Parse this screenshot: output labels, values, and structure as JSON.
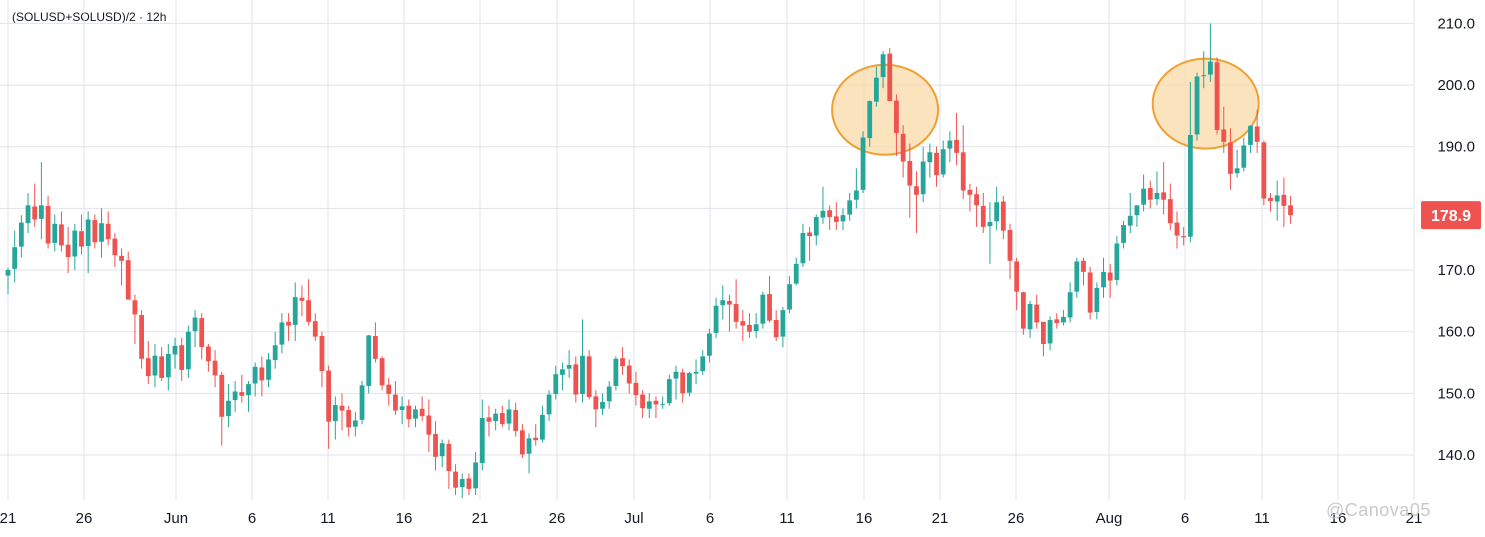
{
  "symbol": "(SOLUSD+SOLUSD)/2 · 12h",
  "watermark": "@Canova05",
  "colors": {
    "up": "#26a69a",
    "down": "#ef5350",
    "grid": "#e0e3eb",
    "highlight_fill": "#f9d9a8",
    "highlight_stroke": "#f0a030",
    "last_price_bg": "#ef5350"
  },
  "last_price_label": "178.9",
  "chart_data": {
    "type": "candlestick",
    "title": "",
    "y_ticks": [
      "140.0",
      "150.0",
      "160.0",
      "170.0",
      "180.0",
      "190.0",
      "200.0",
      "210.0"
    ],
    "ylim": [
      132.7,
      213.8
    ],
    "x_ticks": [
      "21",
      "26",
      "Jun",
      "6",
      "11",
      "16",
      "21",
      "26",
      "Jul",
      "6",
      "11",
      "16",
      "21",
      "26",
      "Aug",
      "6",
      "11",
      "16",
      "21"
    ],
    "grid": true,
    "last_price": 178.9,
    "highlighted_peaks": [
      {
        "date": "Jul 22",
        "high": 206
      },
      {
        "date": "Aug 14",
        "high": 210
      }
    ],
    "candles": [
      [
        169.1,
        170.4,
        166.1,
        170.0
      ],
      [
        170.2,
        176.4,
        168.0,
        173.7
      ],
      [
        173.8,
        178.9,
        172.0,
        177.7
      ],
      [
        177.6,
        182.5,
        176.0,
        180.5
      ],
      [
        180.3,
        184.0,
        177.0,
        178.2
      ],
      [
        178.3,
        187.5,
        175.0,
        180.5
      ],
      [
        180.4,
        182.0,
        173.5,
        174.3
      ],
      [
        174.4,
        179.0,
        173.0,
        177.5
      ],
      [
        177.4,
        179.5,
        173.0,
        174.0
      ],
      [
        174.1,
        177.0,
        169.5,
        172.1
      ],
      [
        172.2,
        177.5,
        170.0,
        176.4
      ],
      [
        176.3,
        179.0,
        172.5,
        173.8
      ],
      [
        173.9,
        179.5,
        169.5,
        178.2
      ],
      [
        178.1,
        179.0,
        173.5,
        174.5
      ],
      [
        174.6,
        180.0,
        172.0,
        177.6
      ],
      [
        177.5,
        179.5,
        174.0,
        175.0
      ],
      [
        175.1,
        176.0,
        170.5,
        172.4
      ],
      [
        172.3,
        173.5,
        167.5,
        171.5
      ],
      [
        171.6,
        173.0,
        166.0,
        165.2
      ],
      [
        165.1,
        166.0,
        158.0,
        162.8
      ],
      [
        162.7,
        163.5,
        154.0,
        155.6
      ],
      [
        155.7,
        158.5,
        151.5,
        152.8
      ],
      [
        152.9,
        158.0,
        151.0,
        156.1
      ],
      [
        156.0,
        157.5,
        152.0,
        152.5
      ],
      [
        152.6,
        158.0,
        150.5,
        156.4
      ],
      [
        156.3,
        159.0,
        154.0,
        157.7
      ],
      [
        157.8,
        159.0,
        152.0,
        153.8
      ],
      [
        153.9,
        161.0,
        152.5,
        160.0
      ],
      [
        160.1,
        163.5,
        157.5,
        162.3
      ],
      [
        162.2,
        163.0,
        155.5,
        157.5
      ],
      [
        157.6,
        158.0,
        153.5,
        155.2
      ],
      [
        155.3,
        157.0,
        151.0,
        152.9
      ],
      [
        153.0,
        153.5,
        141.5,
        146.2
      ],
      [
        146.3,
        151.5,
        144.5,
        148.8
      ],
      [
        148.9,
        152.0,
        147.0,
        150.3
      ],
      [
        150.2,
        153.0,
        148.5,
        149.6
      ],
      [
        149.7,
        152.0,
        147.0,
        151.5
      ],
      [
        151.6,
        155.0,
        149.5,
        154.3
      ],
      [
        154.2,
        156.0,
        149.5,
        152.1
      ],
      [
        152.2,
        156.5,
        151.0,
        155.5
      ],
      [
        155.4,
        160.0,
        154.0,
        157.8
      ],
      [
        157.9,
        163.0,
        156.5,
        161.5
      ],
      [
        161.6,
        163.0,
        158.5,
        161.0
      ],
      [
        161.1,
        168.0,
        158.5,
        165.6
      ],
      [
        165.5,
        167.5,
        162.5,
        165.0
      ],
      [
        165.1,
        168.5,
        161.0,
        161.6
      ],
      [
        161.7,
        163.0,
        158.5,
        159.2
      ],
      [
        159.3,
        160.0,
        151.0,
        153.6
      ],
      [
        153.7,
        154.5,
        141.0,
        145.4
      ],
      [
        145.5,
        149.5,
        142.5,
        148.1
      ],
      [
        148.0,
        150.0,
        144.0,
        147.2
      ],
      [
        147.3,
        148.0,
        143.0,
        144.5
      ],
      [
        144.6,
        147.0,
        143.0,
        145.6
      ],
      [
        145.7,
        152.0,
        145.0,
        151.3
      ],
      [
        151.2,
        159.5,
        150.0,
        159.4
      ],
      [
        159.3,
        161.5,
        155.0,
        155.6
      ],
      [
        155.7,
        156.0,
        150.5,
        151.3
      ],
      [
        151.4,
        152.5,
        148.0,
        149.9
      ],
      [
        149.8,
        152.0,
        146.5,
        147.2
      ],
      [
        147.3,
        149.5,
        145.0,
        147.9
      ],
      [
        148.0,
        149.0,
        144.5,
        145.8
      ],
      [
        145.9,
        148.0,
        144.5,
        147.4
      ],
      [
        147.5,
        149.5,
        145.5,
        146.3
      ],
      [
        146.4,
        149.0,
        140.5,
        143.3
      ],
      [
        143.4,
        145.5,
        137.5,
        139.7
      ],
      [
        139.8,
        142.5,
        138.0,
        141.9
      ],
      [
        141.8,
        142.5,
        134.5,
        137.4
      ],
      [
        137.3,
        138.5,
        133.5,
        134.7
      ],
      [
        134.8,
        137.0,
        133.0,
        136.1
      ],
      [
        136.2,
        137.0,
        133.5,
        134.5
      ],
      [
        134.6,
        140.5,
        133.5,
        138.8
      ],
      [
        138.7,
        149.0,
        137.5,
        146.0
      ],
      [
        146.1,
        148.0,
        143.0,
        145.4
      ],
      [
        145.5,
        147.5,
        144.0,
        146.7
      ],
      [
        146.8,
        148.0,
        144.5,
        145.0
      ],
      [
        145.1,
        149.0,
        144.0,
        147.4
      ],
      [
        147.3,
        148.5,
        143.0,
        143.9
      ],
      [
        144.0,
        145.0,
        139.5,
        140.1
      ],
      [
        140.2,
        143.5,
        137.0,
        142.7
      ],
      [
        142.8,
        145.0,
        141.5,
        142.4
      ],
      [
        142.5,
        148.0,
        142.0,
        146.5
      ],
      [
        146.6,
        150.5,
        145.5,
        149.8
      ],
      [
        149.9,
        154.5,
        149.0,
        153.1
      ],
      [
        153.0,
        155.0,
        150.5,
        153.9
      ],
      [
        154.0,
        157.0,
        152.5,
        154.6
      ],
      [
        154.7,
        156.0,
        148.5,
        149.8
      ],
      [
        149.9,
        162.0,
        148.5,
        156.1
      ],
      [
        156.0,
        157.0,
        149.0,
        149.4
      ],
      [
        149.5,
        150.5,
        144.5,
        147.4
      ],
      [
        147.5,
        150.0,
        146.5,
        148.6
      ],
      [
        148.7,
        152.0,
        147.5,
        151.1
      ],
      [
        151.2,
        156.0,
        150.5,
        155.6
      ],
      [
        155.7,
        157.5,
        153.0,
        154.4
      ],
      [
        154.5,
        155.5,
        150.0,
        151.6
      ],
      [
        151.7,
        153.5,
        148.0,
        149.7
      ],
      [
        149.8,
        150.5,
        146.0,
        147.6
      ],
      [
        147.5,
        150.0,
        146.0,
        148.7
      ],
      [
        148.8,
        149.5,
        146.0,
        148.2
      ],
      [
        148.3,
        149.5,
        147.5,
        148.3
      ],
      [
        148.4,
        153.0,
        148.0,
        152.3
      ],
      [
        152.4,
        154.5,
        149.0,
        153.5
      ],
      [
        153.4,
        154.0,
        148.5,
        150.0
      ],
      [
        150.1,
        153.5,
        149.5,
        153.3
      ],
      [
        153.2,
        155.5,
        151.5,
        153.5
      ],
      [
        153.6,
        157.0,
        153.0,
        156.0
      ],
      [
        156.1,
        160.5,
        155.0,
        159.7
      ],
      [
        159.8,
        165.5,
        159.0,
        164.2
      ],
      [
        164.3,
        167.5,
        162.0,
        165.1
      ],
      [
        165.0,
        166.0,
        160.0,
        164.4
      ],
      [
        164.5,
        168.5,
        160.5,
        161.6
      ],
      [
        161.7,
        163.5,
        158.5,
        161.0
      ],
      [
        161.1,
        163.0,
        159.0,
        160.0
      ],
      [
        160.1,
        163.0,
        159.0,
        161.2
      ],
      [
        161.3,
        166.5,
        160.5,
        166.0
      ],
      [
        166.1,
        169.0,
        161.5,
        161.8
      ],
      [
        161.9,
        163.5,
        158.5,
        159.1
      ],
      [
        159.2,
        164.0,
        157.5,
        163.5
      ],
      [
        163.6,
        169.0,
        163.0,
        167.7
      ],
      [
        167.8,
        172.0,
        167.5,
        171.0
      ],
      [
        171.1,
        177.5,
        170.5,
        176.0
      ],
      [
        176.1,
        177.0,
        171.5,
        175.5
      ],
      [
        175.6,
        179.0,
        174.0,
        178.6
      ],
      [
        178.5,
        183.5,
        177.5,
        179.6
      ],
      [
        179.7,
        180.5,
        176.5,
        178.6
      ],
      [
        178.7,
        181.0,
        176.5,
        177.8
      ],
      [
        177.9,
        180.0,
        176.5,
        178.9
      ],
      [
        179.0,
        182.5,
        178.0,
        181.3
      ],
      [
        181.4,
        186.5,
        180.0,
        182.9
      ],
      [
        183.0,
        192.5,
        182.5,
        191.5
      ],
      [
        191.4,
        197.5,
        190.0,
        197.4
      ],
      [
        197.3,
        203.0,
        196.5,
        201.2
      ],
      [
        201.3,
        205.5,
        199.5,
        205.0
      ],
      [
        205.1,
        206.0,
        198.0,
        197.4
      ],
      [
        197.5,
        198.5,
        188.5,
        192.2
      ],
      [
        192.1,
        193.5,
        185.0,
        187.6
      ],
      [
        187.7,
        190.5,
        178.5,
        183.7
      ],
      [
        183.6,
        186.0,
        176.0,
        182.2
      ],
      [
        182.3,
        190.0,
        181.0,
        187.6
      ],
      [
        187.5,
        190.5,
        185.0,
        189.1
      ],
      [
        189.0,
        190.0,
        183.5,
        185.4
      ],
      [
        185.5,
        191.0,
        185.0,
        189.6
      ],
      [
        189.7,
        192.5,
        187.5,
        191.0
      ],
      [
        191.1,
        195.5,
        187.0,
        189.0
      ],
      [
        189.1,
        193.5,
        181.5,
        182.9
      ],
      [
        183.0,
        184.0,
        179.5,
        182.2
      ],
      [
        182.3,
        183.5,
        177.0,
        180.5
      ],
      [
        180.4,
        182.5,
        176.0,
        177.0
      ],
      [
        177.1,
        181.0,
        171.0,
        177.8
      ],
      [
        177.9,
        183.5,
        176.5,
        181.0
      ],
      [
        181.1,
        182.0,
        175.0,
        176.4
      ],
      [
        176.5,
        177.5,
        168.5,
        171.5
      ],
      [
        171.4,
        172.0,
        163.5,
        166.5
      ],
      [
        166.4,
        166.5,
        159.5,
        160.5
      ],
      [
        160.4,
        165.0,
        159.0,
        164.5
      ],
      [
        164.4,
        166.0,
        160.5,
        161.5
      ],
      [
        161.6,
        161.5,
        156.0,
        158.0
      ],
      [
        158.1,
        162.5,
        157.0,
        161.9
      ],
      [
        162.0,
        163.0,
        160.5,
        161.4
      ],
      [
        161.5,
        163.5,
        161.0,
        162.4
      ],
      [
        162.3,
        168.0,
        161.5,
        166.4
      ],
      [
        166.5,
        172.0,
        165.5,
        171.4
      ],
      [
        171.5,
        172.0,
        167.5,
        169.7
      ],
      [
        169.6,
        170.5,
        162.0,
        163.1
      ],
      [
        163.2,
        168.0,
        162.0,
        167.1
      ],
      [
        167.2,
        172.0,
        165.5,
        169.7
      ],
      [
        169.6,
        171.0,
        165.5,
        168.3
      ],
      [
        168.4,
        175.5,
        167.5,
        174.3
      ],
      [
        174.4,
        178.0,
        173.5,
        177.3
      ],
      [
        177.2,
        182.5,
        176.0,
        178.8
      ],
      [
        178.9,
        180.5,
        177.0,
        180.5
      ],
      [
        180.6,
        185.5,
        179.5,
        183.2
      ],
      [
        183.3,
        184.5,
        180.0,
        181.4
      ],
      [
        181.5,
        186.0,
        180.5,
        182.5
      ],
      [
        182.6,
        187.5,
        179.0,
        181.4
      ],
      [
        181.5,
        184.0,
        176.5,
        177.6
      ],
      [
        177.7,
        179.5,
        173.5,
        175.6
      ],
      [
        175.5,
        177.0,
        174.0,
        175.3
      ],
      [
        175.4,
        200.5,
        174.5,
        191.9
      ],
      [
        192.0,
        202.0,
        191.0,
        201.4
      ],
      [
        201.5,
        205.5,
        199.5,
        201.6
      ],
      [
        201.7,
        210.0,
        200.5,
        203.8
      ],
      [
        203.7,
        204.5,
        192.0,
        192.7
      ],
      [
        192.8,
        196.5,
        189.0,
        190.8
      ],
      [
        190.7,
        193.0,
        183.0,
        185.6
      ],
      [
        185.7,
        189.5,
        185.0,
        186.5
      ],
      [
        186.6,
        191.5,
        186.0,
        190.2
      ],
      [
        190.3,
        193.5,
        189.0,
        193.4
      ],
      [
        193.3,
        196.0,
        189.0,
        190.8
      ],
      [
        190.7,
        191.0,
        180.5,
        181.6
      ],
      [
        181.7,
        182.5,
        179.5,
        181.2
      ],
      [
        181.1,
        184.5,
        178.0,
        182.1
      ],
      [
        182.2,
        185.0,
        177.0,
        180.4
      ],
      [
        180.5,
        182.0,
        177.5,
        178.9
      ]
    ]
  }
}
